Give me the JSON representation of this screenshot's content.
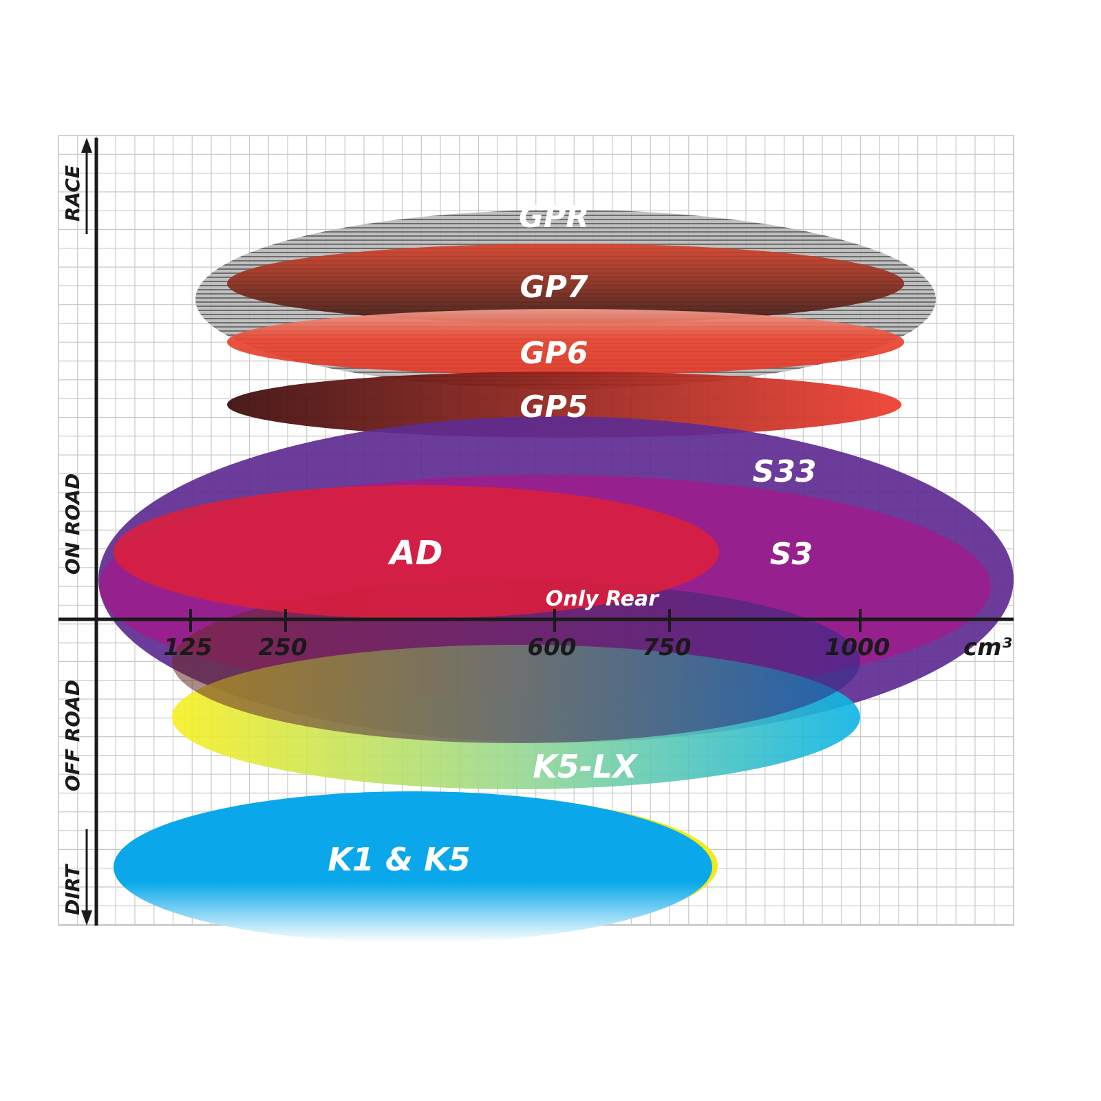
{
  "chart_data": {
    "type": "range-ellipses",
    "xlabel": "cm³",
    "x_ticks": [
      "125",
      "250",
      "600",
      "750",
      "1000"
    ],
    "y_categories": [
      "RACE",
      "ON ROAD",
      "OFF ROAD",
      "DIRT"
    ],
    "grid": true,
    "series": [
      {
        "name": "GPR",
        "color": "#9a9a9a"
      },
      {
        "name": "GP7",
        "color": "#8b2a1e"
      },
      {
        "name": "GP6",
        "color": "#e8452f"
      },
      {
        "name": "GP5",
        "color": "#6a0f0f"
      },
      {
        "name": "S33",
        "color": "#5e2b91"
      },
      {
        "name": "S3",
        "color": "#9c1e8c"
      },
      {
        "name": "AD",
        "color": "#d91f3e"
      },
      {
        "name": "Only Rear",
        "color": "#7a1f5a"
      },
      {
        "name": "K5-LX",
        "color": "#1fb8d8"
      },
      {
        "name": "K1 & K5",
        "color": "#0aa8ea"
      }
    ]
  }
}
